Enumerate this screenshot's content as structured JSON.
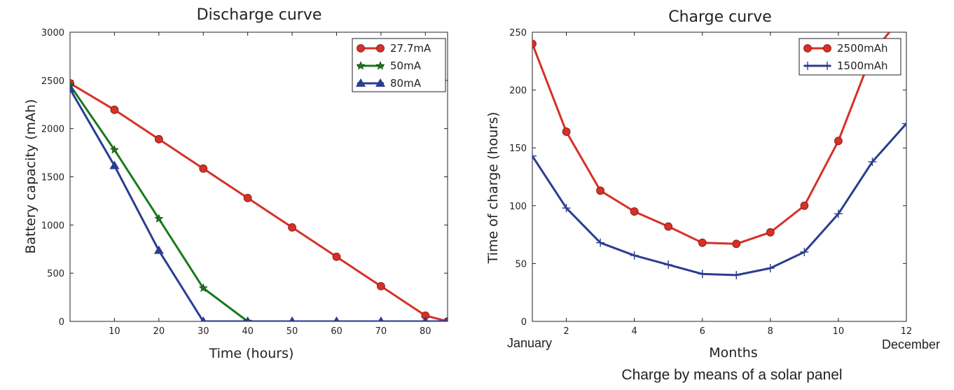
{
  "chart_data": [
    {
      "type": "line",
      "title": "Discharge curve",
      "xlabel": "Time (hours)",
      "ylabel": "Battery capacity (mAh)",
      "xlim": [
        0,
        85
      ],
      "ylim": [
        0,
        3000
      ],
      "xticks": [
        "10",
        "20",
        "30",
        "40",
        "50",
        "60",
        "70",
        "80"
      ],
      "xtick_values": [
        10,
        20,
        30,
        40,
        50,
        60,
        70,
        80
      ],
      "yticks": [
        "0",
        "500",
        "1000",
        "1500",
        "2000",
        "2500",
        "3000"
      ],
      "ytick_values": [
        0,
        500,
        1000,
        1500,
        2000,
        2500,
        3000
      ],
      "legend_position": "top-right",
      "grid": false,
      "series": [
        {
          "name": "27.7mA",
          "color": "#d73027",
          "marker": "circle",
          "x": [
            0,
            10,
            20,
            30,
            40,
            50,
            60,
            70,
            80,
            85
          ],
          "y": [
            2470,
            2195,
            1890,
            1585,
            1280,
            975,
            670,
            365,
            60,
            0
          ]
        },
        {
          "name": "50mA",
          "color": "#1a7a1a",
          "marker": "star",
          "x": [
            0,
            10,
            20,
            30,
            40
          ],
          "y": [
            2450,
            1780,
            1065,
            345,
            0
          ]
        },
        {
          "name": "80mA",
          "color": "#2b3d8f",
          "marker": "triangle",
          "x": [
            0,
            10,
            20,
            30,
            40,
            50,
            60,
            70,
            80,
            85
          ],
          "y": [
            2410,
            1615,
            735,
            0,
            0,
            0,
            0,
            0,
            0,
            0
          ]
        }
      ]
    },
    {
      "type": "line",
      "title": "Charge curve",
      "xlabel": "Months",
      "ylabel": "Time of charge (hours)",
      "xlim": [
        1,
        12
      ],
      "ylim": [
        0,
        250
      ],
      "xticks": [
        "2",
        "4",
        "6",
        "8",
        "10",
        "12"
      ],
      "xtick_values": [
        2,
        4,
        6,
        8,
        10,
        12
      ],
      "yticks": [
        "0",
        "50",
        "100",
        "150",
        "200",
        "250"
      ],
      "ytick_values": [
        0,
        50,
        100,
        150,
        200,
        250
      ],
      "legend_position": "top-right",
      "grid": false,
      "series": [
        {
          "name": "2500mAh",
          "color": "#d73027",
          "marker": "circle",
          "x": [
            1,
            2,
            3,
            4,
            5,
            6,
            7,
            8,
            9,
            10,
            11,
            11.5
          ],
          "y": [
            240,
            164,
            113,
            95,
            82,
            68,
            67,
            77,
            100,
            156,
            232,
            250
          ],
          "marker_mask": [
            1,
            1,
            1,
            1,
            1,
            1,
            1,
            1,
            1,
            1,
            0,
            0
          ]
        },
        {
          "name": "1500mAh",
          "color": "#2b3d8f",
          "marker": "plus",
          "x": [
            1,
            2,
            3,
            4,
            5,
            6,
            7,
            8,
            9,
            10,
            11,
            12
          ],
          "y": [
            143,
            98,
            68,
            57,
            49,
            41,
            40,
            46,
            60,
            93,
            138,
            171
          ]
        }
      ]
    }
  ],
  "annotations": {
    "start_month": "January",
    "end_month": "December",
    "caption": "Charge by means of a solar panel"
  }
}
